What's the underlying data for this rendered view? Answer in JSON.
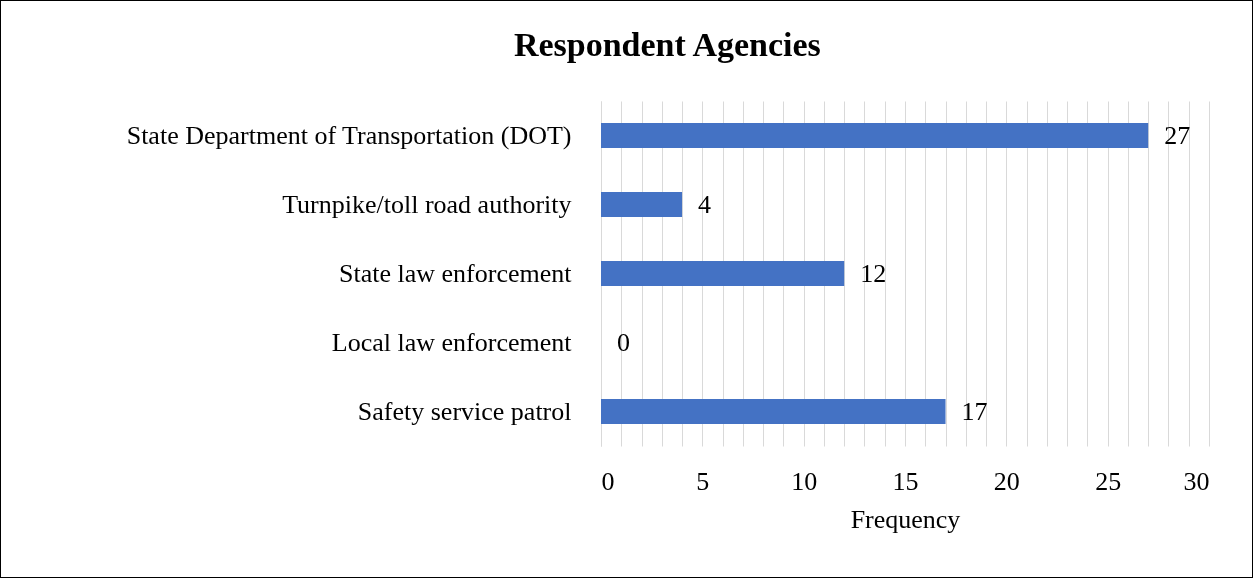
{
  "chart_data": {
    "type": "bar",
    "orientation": "horizontal",
    "title": "Respondent Agencies",
    "xlabel": "Frequency",
    "categories": [
      "State Department of Transportation (DOT)",
      "Turnpike/toll road authority",
      "State law enforcement",
      "Local law enforcement",
      "Safety service patrol"
    ],
    "values": [
      27,
      4,
      12,
      0,
      17
    ],
    "color": "#4472c4",
    "data_labels": true,
    "grid": "x",
    "xlim": [
      0,
      30
    ],
    "xticks": [
      0,
      {
        "value": 1,
        "label": null
      },
      {
        "value": 2,
        "label": null
      },
      {
        "value": 3,
        "label": null
      },
      {
        "value": 4,
        "label": null
      },
      5,
      {
        "value": 6,
        "label": null
      },
      {
        "value": 7,
        "label": null
      },
      {
        "value": 8,
        "label": null
      },
      {
        "value": 9,
        "label": null
      },
      10,
      {
        "value": 11,
        "label": null
      },
      {
        "value": 12,
        "label": null
      },
      {
        "value": 13,
        "label": null
      },
      {
        "value": 14,
        "label": null
      },
      15,
      {
        "value": 16,
        "label": null
      },
      {
        "value": 17,
        "label": null
      },
      {
        "value": 18,
        "label": null
      },
      {
        "value": 19,
        "label": null
      },
      20,
      {
        "value": 21,
        "label": null
      },
      {
        "value": 22,
        "label": null
      },
      {
        "value": 23,
        "label": null
      },
      {
        "value": 24,
        "label": null
      },
      25,
      {
        "value": 26,
        "label": null
      },
      {
        "value": 27,
        "label": null
      },
      {
        "value": 28,
        "label": null
      },
      {
        "value": 29,
        "label": null
      },
      30
    ]
  }
}
